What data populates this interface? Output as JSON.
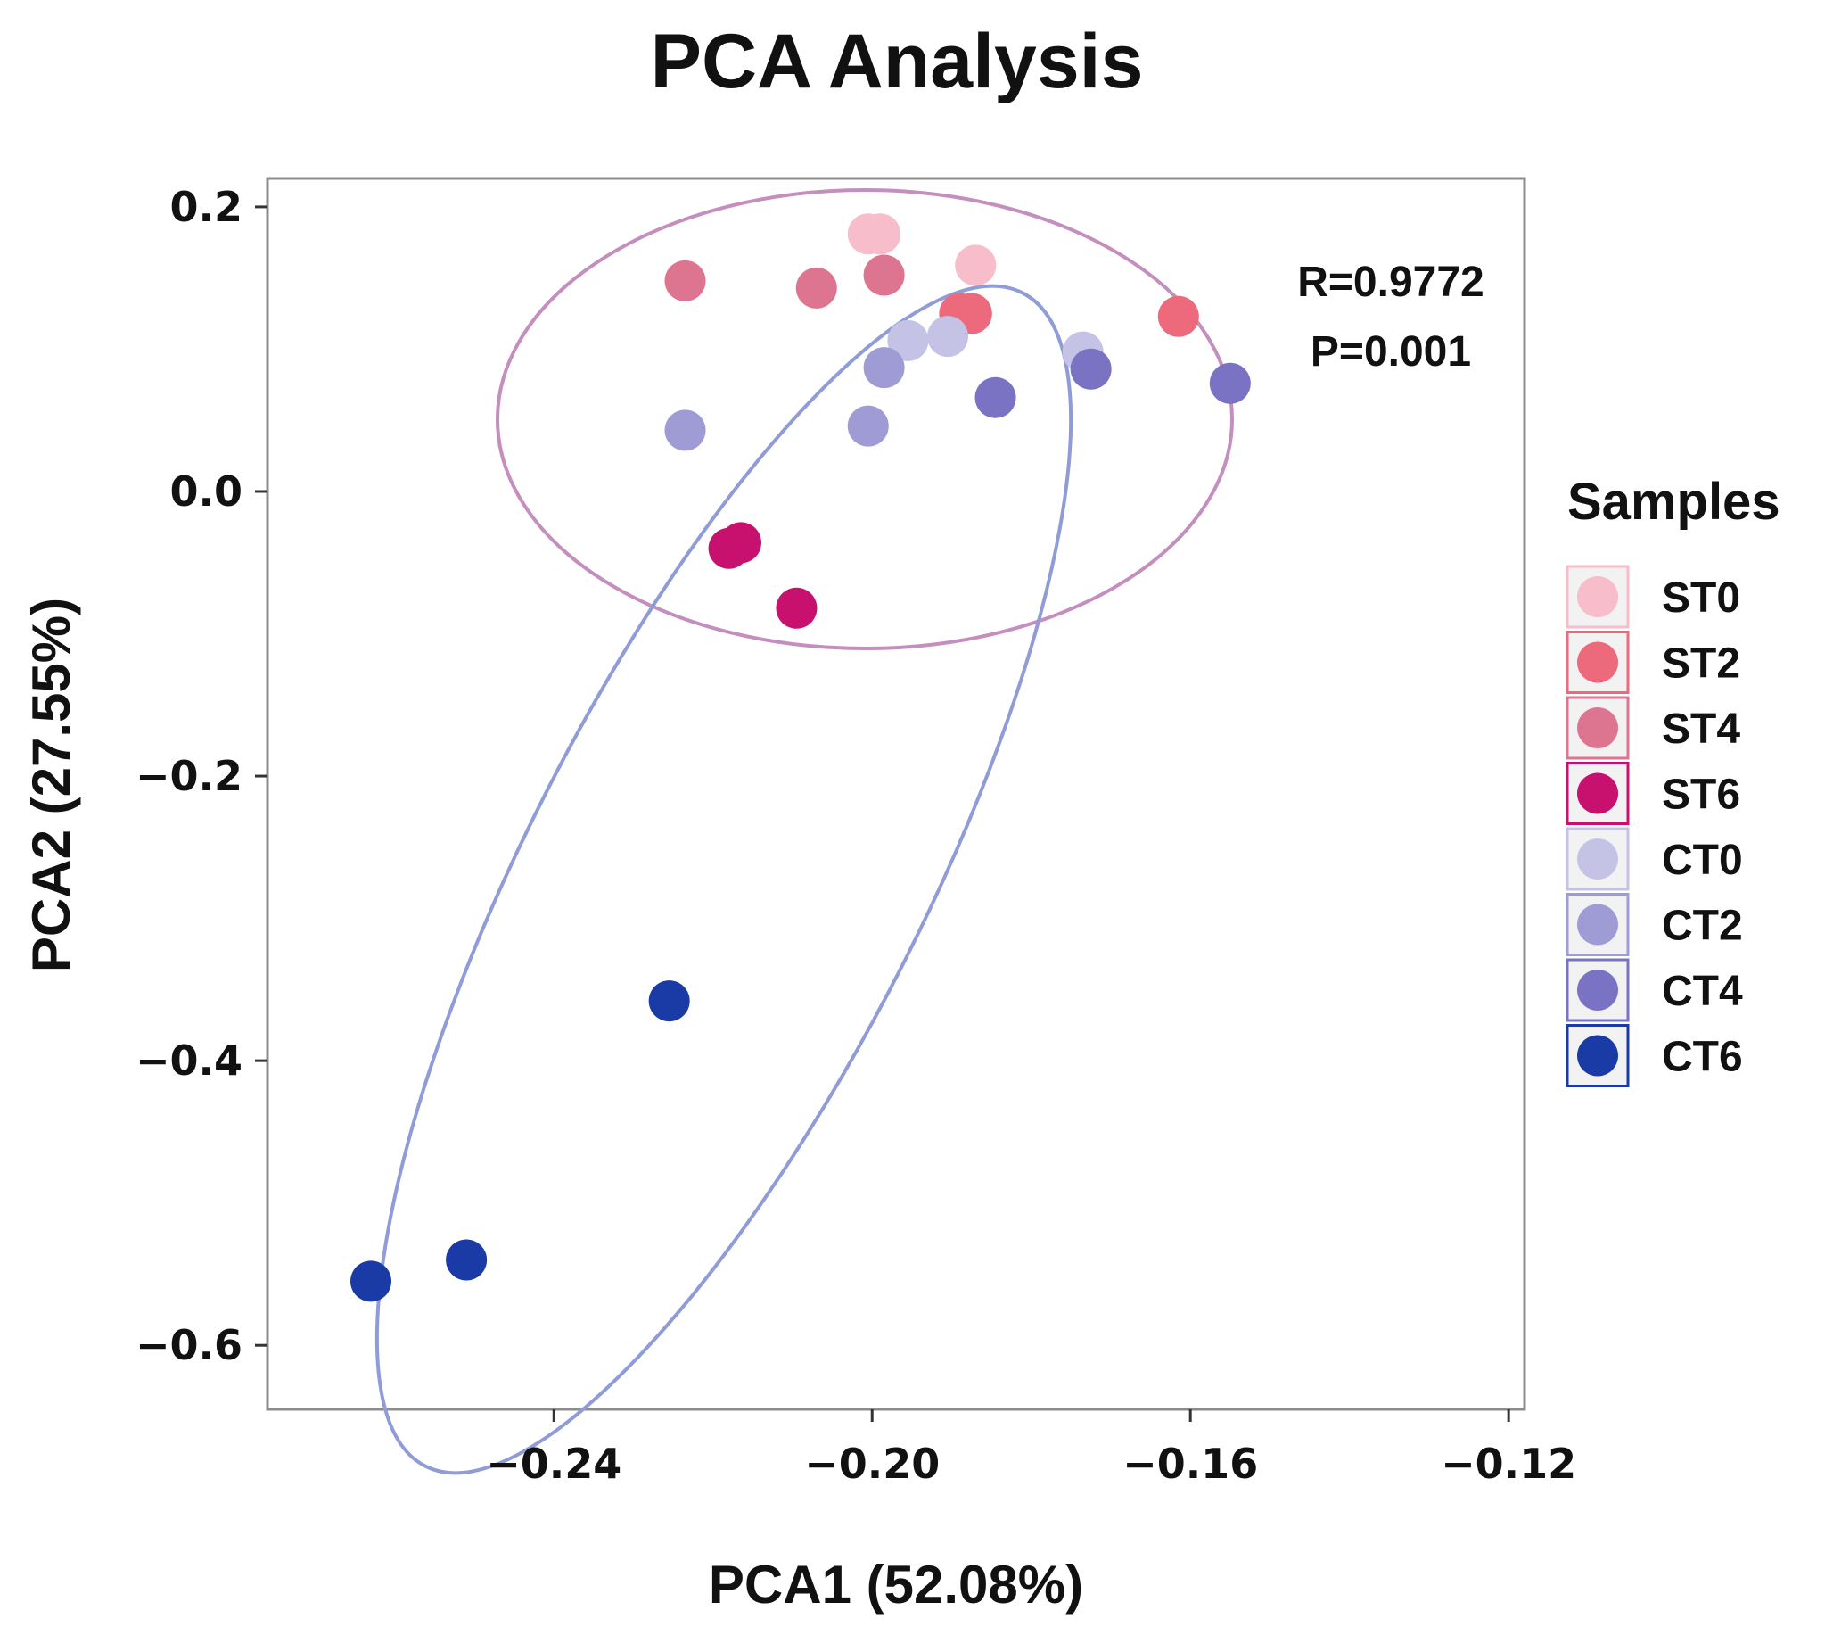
{
  "chart_data": {
    "type": "scatter",
    "title": "PCA Analysis",
    "xlabel": "PCA1 (52.08%)",
    "ylabel": "PCA2 (27.55%)",
    "xlim": [
      -0.276,
      -0.118
    ],
    "ylim": [
      -0.645,
      0.22
    ],
    "xticks": [
      -0.24,
      -0.2,
      -0.16,
      -0.12
    ],
    "xtick_labels": [
      "−0.24",
      "−0.20",
      "−0.16",
      "−0.12"
    ],
    "yticks": [
      0.2,
      0.0,
      -0.2,
      -0.4,
      -0.6
    ],
    "ytick_labels": [
      "0.2",
      "0.0",
      "−0.2",
      "−0.4",
      "−0.6"
    ],
    "grid": false,
    "annotations": [
      "R=0.9772",
      "P=0.001"
    ],
    "legend": {
      "title": "Samples",
      "position": "right"
    },
    "series": [
      {
        "name": "ST0",
        "color": "#f7bdcb",
        "points": [
          [
            -0.2005,
            0.181
          ],
          [
            -0.199,
            0.181
          ],
          [
            -0.187,
            0.159
          ]
        ]
      },
      {
        "name": "ST2",
        "color": "#ec6a7c",
        "points": [
          [
            -0.189,
            0.125
          ],
          [
            -0.1875,
            0.125
          ],
          [
            -0.1615,
            0.123
          ]
        ]
      },
      {
        "name": "ST4",
        "color": "#dd7590",
        "points": [
          [
            -0.2235,
            0.148
          ],
          [
            -0.207,
            0.143
          ],
          [
            -0.1985,
            0.152
          ]
        ]
      },
      {
        "name": "ST6",
        "color": "#c8106e",
        "points": [
          [
            -0.218,
            -0.04
          ],
          [
            -0.2165,
            -0.036
          ],
          [
            -0.2095,
            -0.082
          ]
        ]
      },
      {
        "name": "CT0",
        "color": "#c4c3e6",
        "points": [
          [
            -0.1955,
            0.106
          ],
          [
            -0.1905,
            0.109
          ],
          [
            -0.1735,
            0.098
          ]
        ]
      },
      {
        "name": "CT2",
        "color": "#9e9bd5",
        "points": [
          [
            -0.2235,
            0.043
          ],
          [
            -0.2005,
            0.046
          ],
          [
            -0.1985,
            0.087
          ]
        ]
      },
      {
        "name": "CT4",
        "color": "#7a73c4",
        "points": [
          [
            -0.1845,
            0.066
          ],
          [
            -0.1725,
            0.086
          ],
          [
            -0.155,
            0.076
          ]
        ]
      },
      {
        "name": "CT6",
        "color": "#1a3aa6",
        "points": [
          [
            -0.2255,
            -0.358
          ],
          [
            -0.251,
            -0.54
          ],
          [
            -0.263,
            -0.555
          ]
        ]
      }
    ],
    "ellipses": [
      {
        "group": "ST",
        "color": "#c48fbf"
      },
      {
        "group": "CT",
        "color": "#8f9cd8"
      }
    ]
  }
}
